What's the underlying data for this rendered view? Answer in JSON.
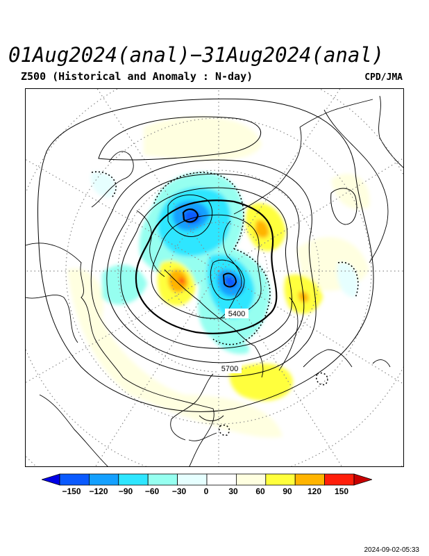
{
  "header": {
    "title": "01Aug2024(anal)−31Aug2024(anal)",
    "subtitle": "Z500 (Historical and Anomaly : N-day)",
    "credit": "CPD/JMA"
  },
  "map": {
    "contour_labels": [
      "5400",
      "5700"
    ]
  },
  "colorbar": {
    "ticks": [
      "−150",
      "−120",
      "−90",
      "−60",
      "−30",
      "0",
      "30",
      "60",
      "90",
      "120",
      "150"
    ],
    "colors": [
      "#0000e6",
      "#0a5aff",
      "#14a0ff",
      "#2ee6ff",
      "#96fff0",
      "#e6ffff",
      "#ffffff",
      "#ffffe0",
      "#ffff3c",
      "#ffb400",
      "#ff1e0a",
      "#c80000"
    ]
  },
  "footer": {
    "timestamp": "2024-09-02-05:33"
  }
}
